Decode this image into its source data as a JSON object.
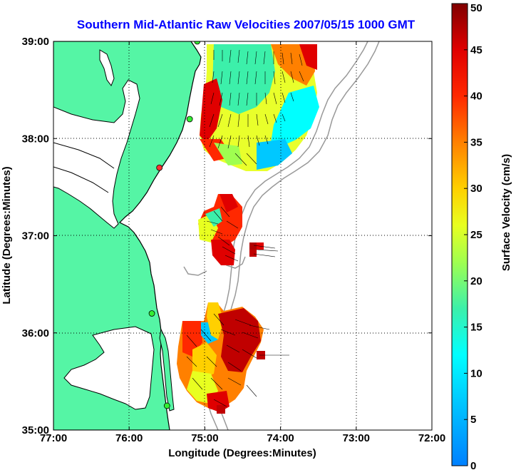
{
  "title": "Southern Mid-Atlantic Raw Velocities 2007/05/15 1000 GMT",
  "x_axis": {
    "label": "Longitude (Degrees:Minutes)",
    "ticks": [
      {
        "value": -77,
        "label": "77:00"
      },
      {
        "value": -76,
        "label": "76:00"
      },
      {
        "value": -75,
        "label": "75:00"
      },
      {
        "value": -74,
        "label": "74:00"
      },
      {
        "value": -73,
        "label": "73:00"
      },
      {
        "value": -72,
        "label": "72:00"
      }
    ],
    "range": [
      -77,
      -72
    ]
  },
  "y_axis": {
    "label": "Latitude (Degrees:Minutes)",
    "ticks": [
      {
        "value": 35,
        "label": "35:00"
      },
      {
        "value": 36,
        "label": "36:00"
      },
      {
        "value": 37,
        "label": "37:00"
      },
      {
        "value": 38,
        "label": "38:00"
      },
      {
        "value": 39,
        "label": "39:00"
      }
    ],
    "range": [
      35,
      39
    ]
  },
  "colorbar": {
    "label": "Surface Velocity (cm/s)",
    "range": [
      0,
      50
    ],
    "ticks": [
      {
        "value": 0,
        "label": "0"
      },
      {
        "value": 5,
        "label": "5"
      },
      {
        "value": 10,
        "label": "10"
      },
      {
        "value": 15,
        "label": "15"
      },
      {
        "value": 20,
        "label": "20"
      },
      {
        "value": 25,
        "label": "25"
      },
      {
        "value": 30,
        "label": "30"
      },
      {
        "value": 35,
        "label": "35"
      },
      {
        "value": 40,
        "label": "40"
      },
      {
        "value": 45,
        "label": "45"
      },
      {
        "value": 50,
        "label": "50"
      }
    ]
  },
  "colors": {
    "land": "#55f5a5",
    "water": "#ffffff",
    "bathymetry": "#999999",
    "station": "#33ee33",
    "station_alt": "#ff3333",
    "title": "#0000ff"
  },
  "chart_data": {
    "type": "heatmap",
    "description_units": "speed in cm/s at lon/lat",
    "regions": [
      {
        "lon_range": [
          -75.1,
          -73.5
        ],
        "lat_range": [
          37.7,
          39.0
        ],
        "speed_range": [
          8,
          50
        ]
      },
      {
        "lon_range": [
          -75.1,
          -74.4
        ],
        "lat_range": [
          36.6,
          37.4
        ],
        "speed_range": [
          15,
          50
        ]
      },
      {
        "lon_range": [
          -75.3,
          -74.2
        ],
        "lat_range": [
          35.2,
          36.5
        ],
        "speed_range": [
          10,
          50
        ]
      }
    ],
    "isolated_cells": [
      {
        "lon": -74.3,
        "lat": 36.85,
        "speed": 48
      },
      {
        "lon": -74.3,
        "lat": 35.75,
        "speed": 48
      }
    ],
    "stations": [
      {
        "lon": -75.1,
        "lat": 39.0
      },
      {
        "lon": -75.2,
        "lat": 38.2
      },
      {
        "lon": -75.6,
        "lat": 37.7
      },
      {
        "lon": -75.7,
        "lat": 36.2
      },
      {
        "lon": -75.5,
        "lat": 35.25
      }
    ]
  }
}
